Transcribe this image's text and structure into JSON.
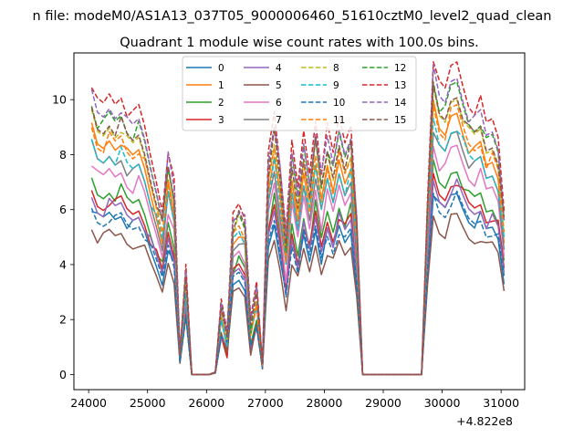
{
  "figure": {
    "suptitle": "n file: modeM0/AS1A13_037T05_9000006460_51610cztM0_level2_quad_clean",
    "title": "Quadrant 1 module wise count rates with 100.0s bins.",
    "offset_label": "+4.822e8"
  },
  "chart_data": {
    "type": "line",
    "title": "Quadrant 1 module wise count rates with 100.0s bins.",
    "xlabel": "",
    "ylabel": "",
    "x_offset": 482200000,
    "xlim": [
      23750,
      31400
    ],
    "ylim": [
      -0.55,
      11.7
    ],
    "xticks": [
      24000,
      25000,
      26000,
      27000,
      28000,
      29000,
      30000,
      31000
    ],
    "yticks": [
      0,
      2,
      4,
      6,
      8,
      10
    ],
    "legend_placement": "upper center",
    "legend_ncol": 4,
    "grid": false,
    "series": [
      {
        "name": "0",
        "color": "#1f77b4",
        "dash": "solid",
        "scale": 0.6,
        "offset": 0.0
      },
      {
        "name": "1",
        "color": "#ff7f0e",
        "dash": "solid",
        "scale": 0.87,
        "offset": 0.1
      },
      {
        "name": "2",
        "color": "#2ca02c",
        "dash": "solid",
        "scale": 0.68,
        "offset": 0.2
      },
      {
        "name": "3",
        "color": "#d62728",
        "dash": "solid",
        "scale": 0.64,
        "offset": 0.3
      },
      {
        "name": "4",
        "color": "#9467bd",
        "dash": "solid",
        "scale": 0.62,
        "offset": 0.4
      },
      {
        "name": "5",
        "color": "#8c564b",
        "dash": "solid",
        "scale": 0.51,
        "offset": 0.5
      },
      {
        "name": "6",
        "color": "#e377c2",
        "dash": "solid",
        "scale": 0.74,
        "offset": 0.6
      },
      {
        "name": "7",
        "color": "#7f7f7f",
        "dash": "solid",
        "scale": 0.79,
        "offset": 0.7
      },
      {
        "name": "8",
        "color": "#bcbd22",
        "dash": "dashed",
        "scale": 0.9,
        "offset": 0.8
      },
      {
        "name": "9",
        "color": "#17becf",
        "dash": "dashed",
        "scale": 0.8,
        "offset": 0.9
      },
      {
        "name": "10",
        "color": "#1f77b4",
        "dash": "dashed",
        "scale": 0.56,
        "offset": 1.0
      },
      {
        "name": "11",
        "color": "#ff7f0e",
        "dash": "dashed",
        "scale": 0.85,
        "offset": 1.1
      },
      {
        "name": "12",
        "color": "#2ca02c",
        "dash": "dashed",
        "scale": 0.93,
        "offset": 1.2
      },
      {
        "name": "13",
        "color": "#d62728",
        "dash": "dashed",
        "scale": 1.0,
        "offset": 1.3
      },
      {
        "name": "14",
        "color": "#9467bd",
        "dash": "dashed",
        "scale": 0.95,
        "offset": 1.4
      },
      {
        "name": "15",
        "color": "#8c564b",
        "dash": "dashed",
        "scale": 0.89,
        "offset": 1.5
      }
    ],
    "base_profile": {
      "x": [
        24050,
        24150,
        24250,
        24350,
        24450,
        24550,
        24650,
        24750,
        24850,
        24950,
        25050,
        25150,
        25250,
        25350,
        25450,
        25550,
        25650,
        25750,
        25850,
        25950,
        26050,
        26150,
        26250,
        26350,
        26450,
        26550,
        26650,
        26750,
        26850,
        26950,
        27050,
        27150,
        27250,
        27350,
        27450,
        27550,
        27650,
        27750,
        27850,
        27950,
        28050,
        28150,
        28250,
        28350,
        28450,
        28550,
        28650,
        28750,
        28850,
        28950,
        29050,
        29150,
        29250,
        29350,
        29450,
        29550,
        29650,
        29750,
        29850,
        29950,
        30050,
        30150,
        30250,
        30350,
        30450,
        30550,
        30650,
        30750,
        30850,
        30950,
        31050
      ],
      "y": [
        10.3,
        9.5,
        9.4,
        9.8,
        9.5,
        9.8,
        9.2,
        9.0,
        9.3,
        8.6,
        7.6,
        6.7,
        5.7,
        7.9,
        6.6,
        0.8,
        3.6,
        0.0,
        0.0,
        0.0,
        0.0,
        0.1,
        2.3,
        1.2,
        5.6,
        6.0,
        5.5,
        1.5,
        2.9,
        0.4,
        7.8,
        9.3,
        7.3,
        4.6,
        8.0,
        6.4,
        8.5,
        7.0,
        9.0,
        7.1,
        8.6,
        7.6,
        9.0,
        8.1,
        8.8,
        5.4,
        0.0,
        0.0,
        0.0,
        0.0,
        0.0,
        0.0,
        0.0,
        0.0,
        0.0,
        0.0,
        0.0,
        6.1,
        11.2,
        10.1,
        9.9,
        10.8,
        11.0,
        10.2,
        9.5,
        9.3,
        9.6,
        8.7,
        8.9,
        8.3,
        5.7
      ]
    }
  }
}
